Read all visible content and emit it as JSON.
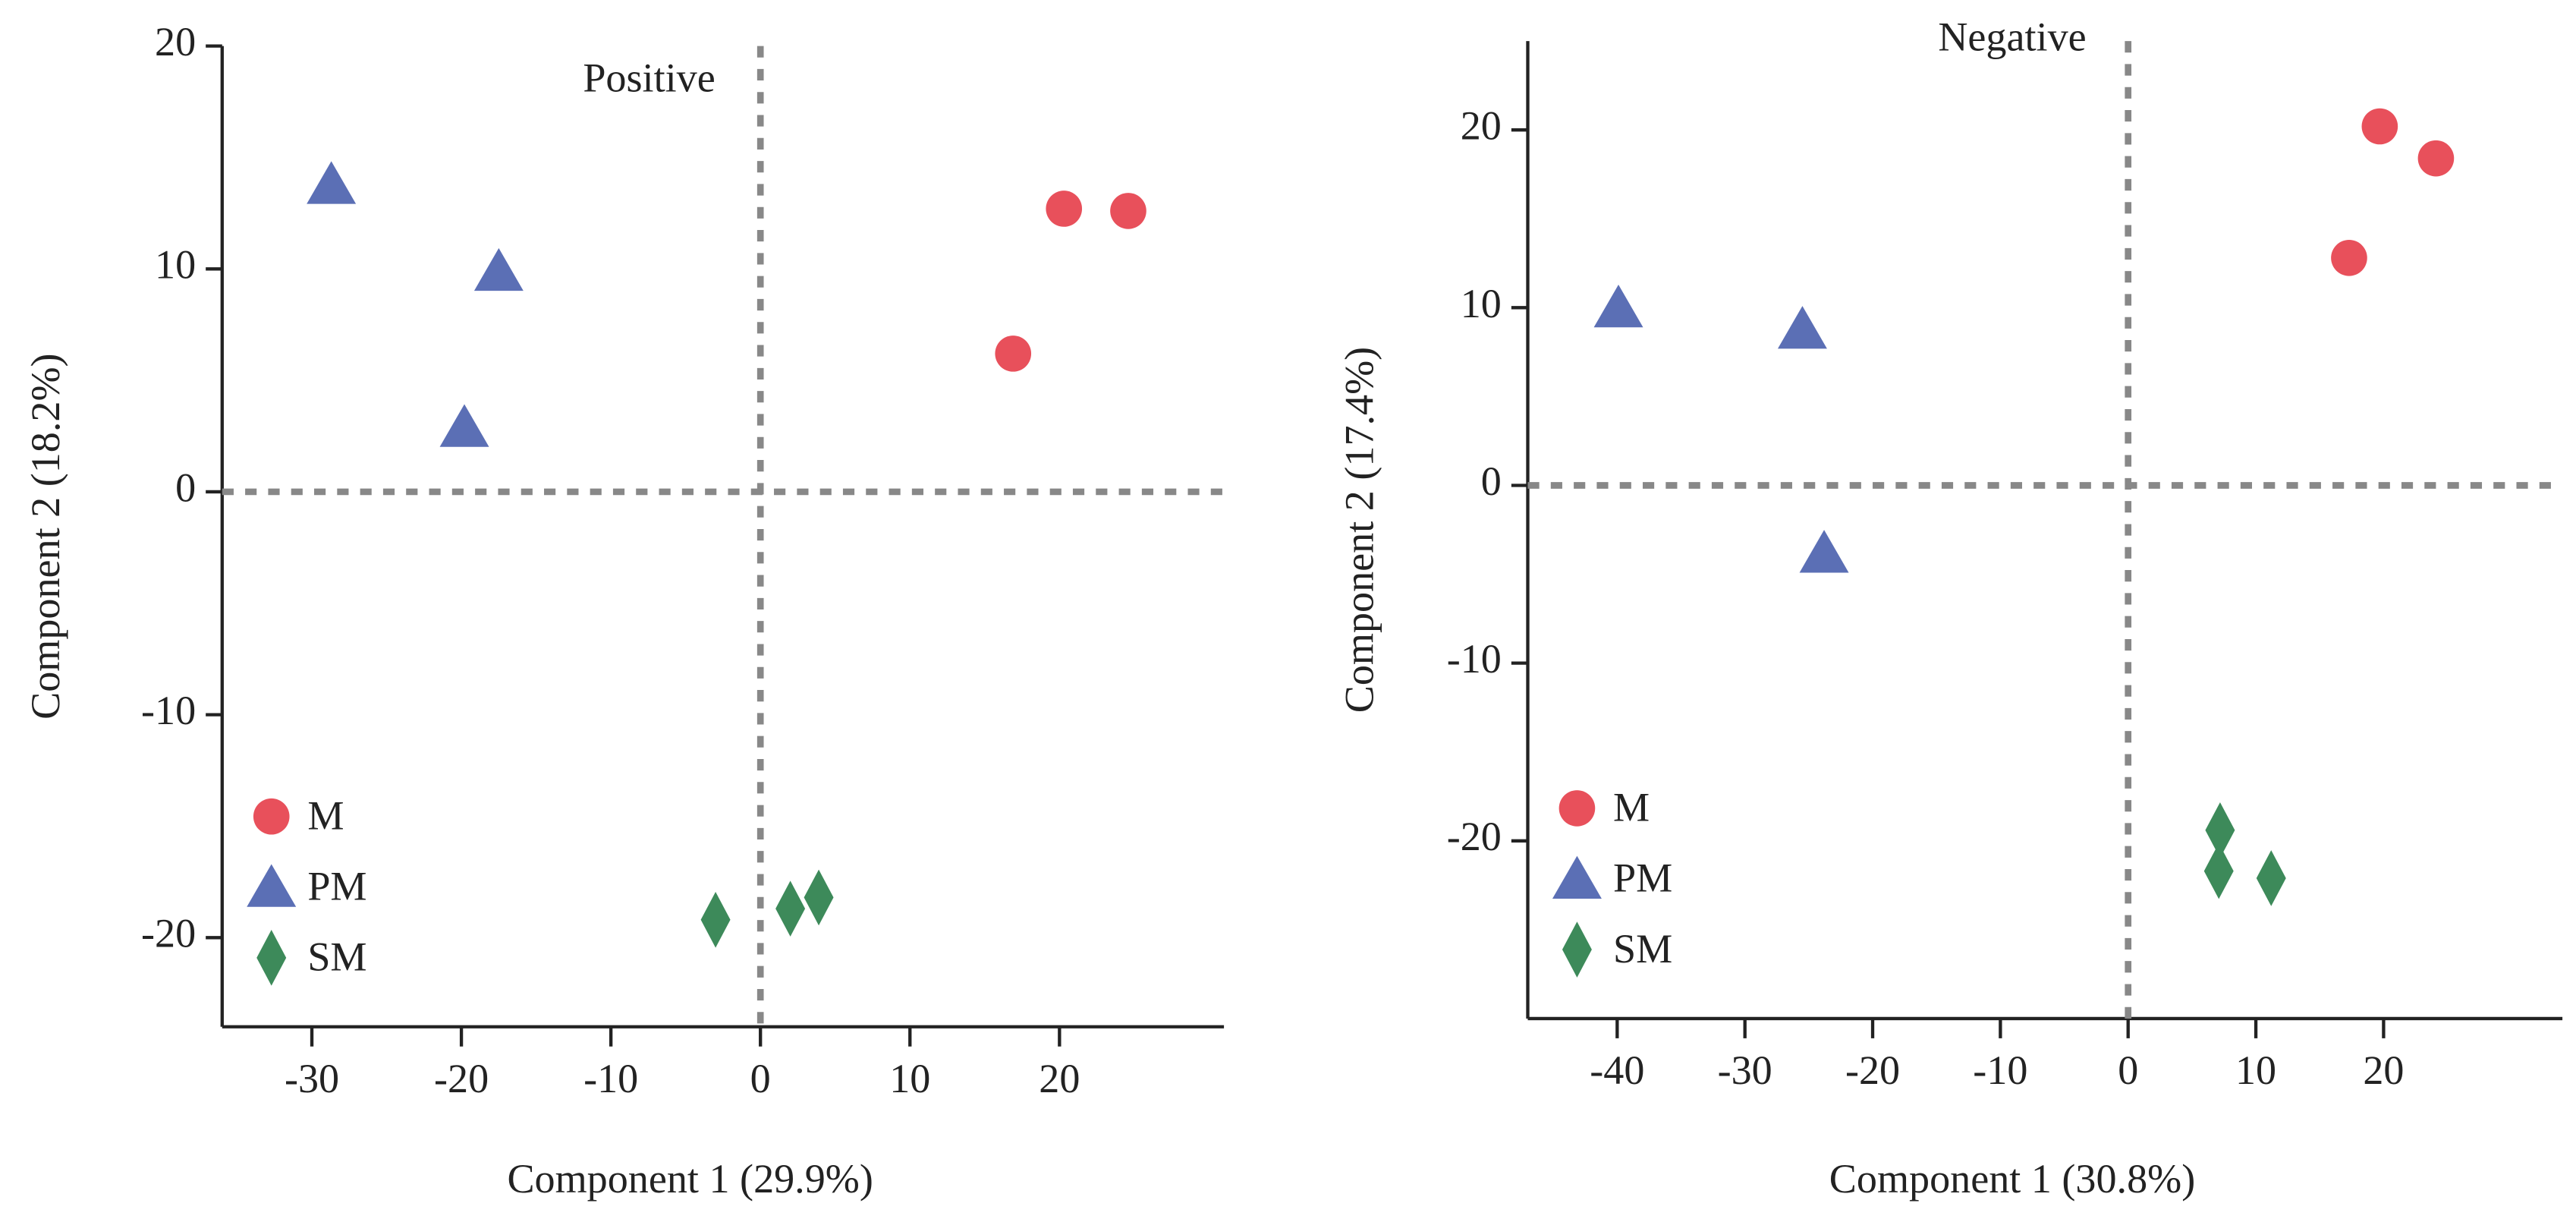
{
  "chart_data": [
    {
      "type": "scatter",
      "annotation": "Positive",
      "xlabel": "Component 1 (29.9%)",
      "ylabel": "Component 2 (18.2%)",
      "xlim": [
        -36,
        31
      ],
      "ylim": [
        -24,
        20
      ],
      "xticks": [
        -30,
        -20,
        -10,
        0,
        10,
        20
      ],
      "yticks": [
        -20,
        -10,
        0,
        10,
        20
      ],
      "vlines": [
        0
      ],
      "hlines": [
        0
      ],
      "legend": "lower left",
      "series": [
        {
          "name": "M",
          "color": "#e8505b",
          "marker": "circle",
          "x": [
            20.3,
            24.6,
            16.9
          ],
          "values": [
            12.7,
            12.6,
            6.2
          ]
        },
        {
          "name": "PM",
          "color": "#5b6fb5",
          "marker": "triangle",
          "x": [
            -28.7,
            -17.5,
            -19.8
          ],
          "values": [
            13.8,
            9.9,
            2.9
          ]
        },
        {
          "name": "SM",
          "color": "#3d8a5a",
          "marker": "diamond",
          "x": [
            -3.0,
            2.0,
            3.9
          ],
          "values": [
            -19.2,
            -18.7,
            -18.2
          ]
        }
      ]
    },
    {
      "type": "scatter",
      "annotation": "Negative",
      "xlabel": "Component 1 (30.8%)",
      "ylabel": "Component 2 (17.4%)",
      "xlim": [
        -47,
        34
      ],
      "ylim": [
        -30,
        25
      ],
      "xticks": [
        -40,
        -30,
        -20,
        -10,
        0,
        10,
        20
      ],
      "yticks": [
        -20,
        -10,
        0,
        10,
        20
      ],
      "vlines": [
        0
      ],
      "hlines": [
        0
      ],
      "legend": "lower left",
      "series": [
        {
          "name": "M",
          "color": "#e8505b",
          "marker": "circle",
          "x": [
            19.7,
            24.1,
            17.3
          ],
          "values": [
            20.2,
            18.4,
            12.8
          ]
        },
        {
          "name": "PM",
          "color": "#5b6fb5",
          "marker": "triangle",
          "x": [
            -39.9,
            -25.5,
            -23.8
          ],
          "values": [
            10.0,
            8.8,
            -3.8
          ]
        },
        {
          "name": "SM",
          "color": "#3d8a5a",
          "marker": "diamond",
          "x": [
            7.2,
            7.1,
            11.2
          ],
          "values": [
            -19.4,
            -21.7,
            -22.1
          ]
        }
      ]
    }
  ]
}
